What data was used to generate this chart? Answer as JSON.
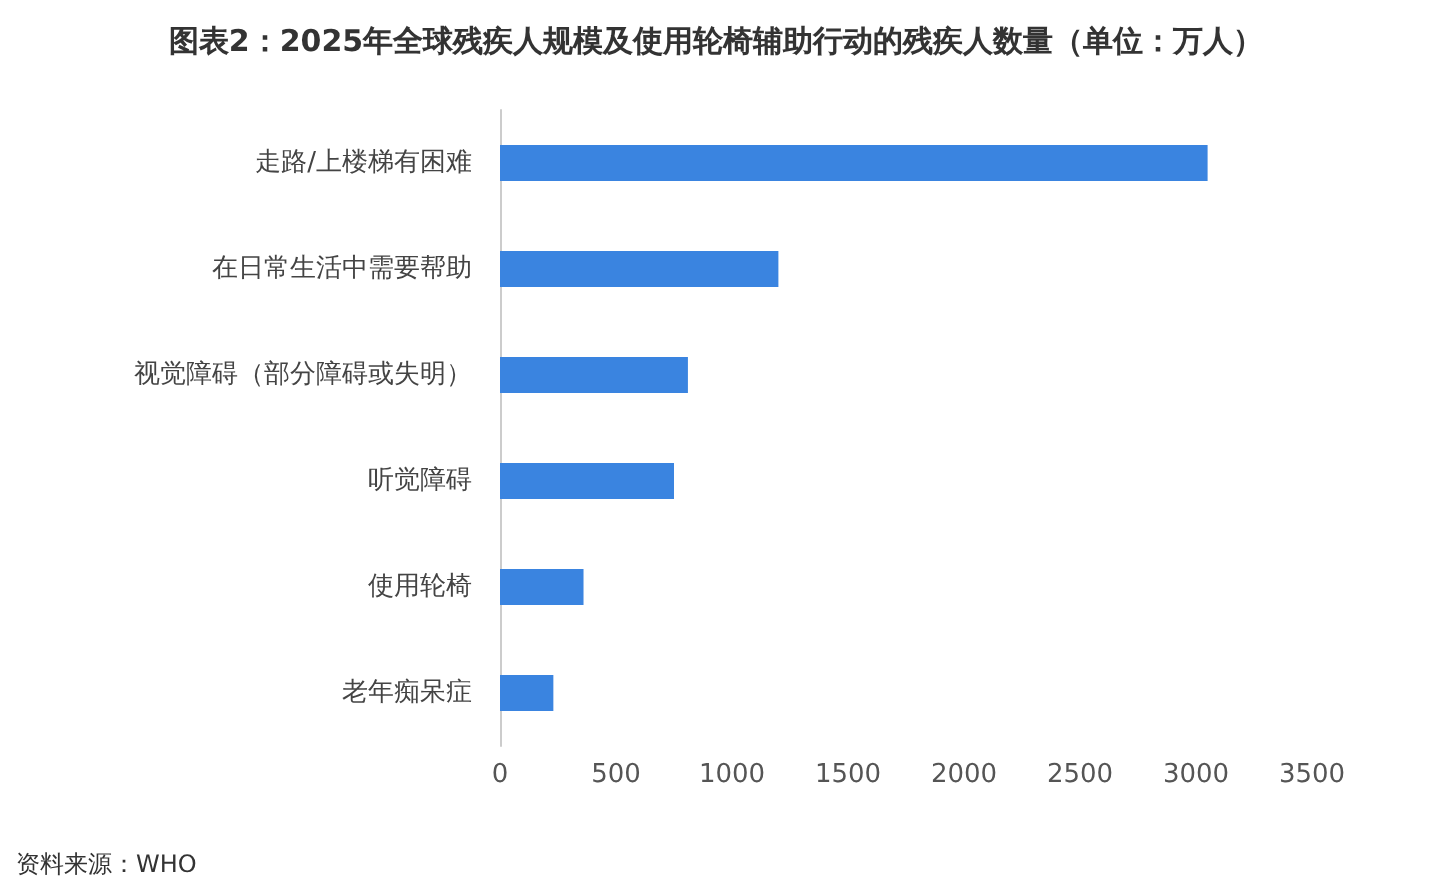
{
  "chart_data": {
    "type": "bar",
    "orientation": "horizontal",
    "title": "图表2：2025年全球残疾人规模及使用轮椅辅助行动的残疾人数量（单位：万人）",
    "categories": [
      "走路/上楼梯有困难",
      "在日常生活中需要帮助",
      "视觉障碍（部分障碍或失明）",
      "听觉障碍",
      "使用轮椅",
      "老年痴呆症"
    ],
    "values": [
      3050,
      1200,
      810,
      750,
      360,
      230
    ],
    "color": "#3a84e0",
    "xlim": [
      0,
      3500
    ],
    "xticks": [
      0,
      500,
      1000,
      1500,
      2000,
      2500,
      3000,
      3500
    ],
    "grid": false,
    "annotations": [
      "资料来源：WHO"
    ]
  }
}
